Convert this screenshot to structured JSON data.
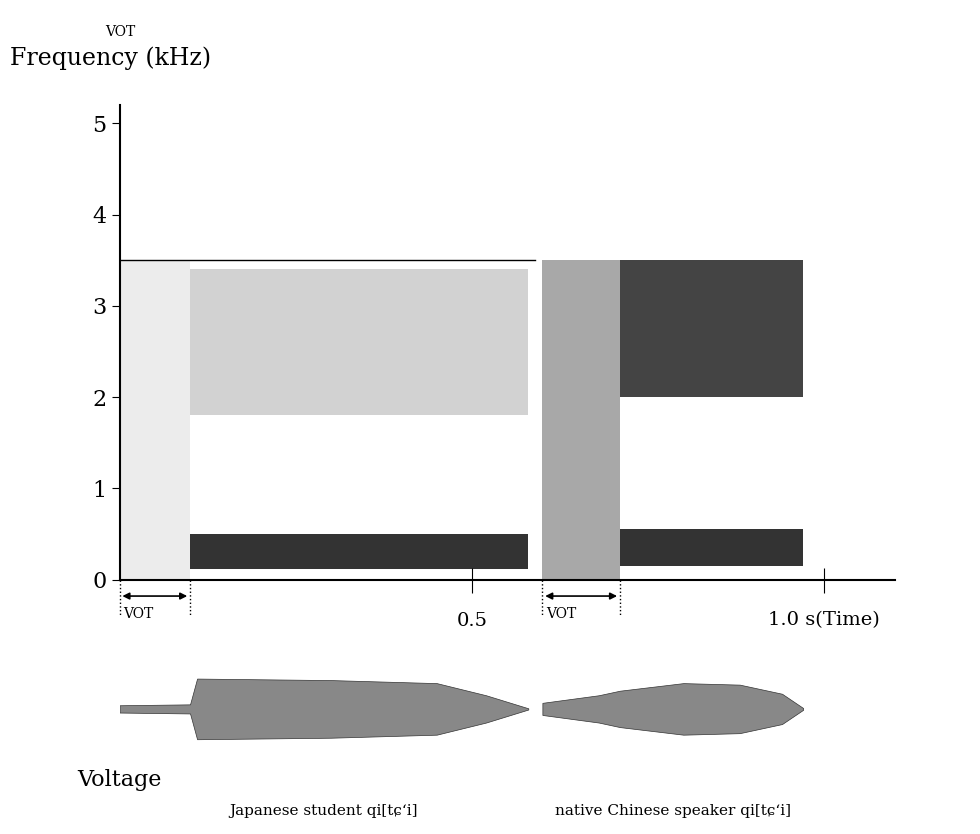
{
  "chart_data": {
    "type": "spectrogram",
    "header": "VOT",
    "y_label": "Frequency (kHz)",
    "ylim": [
      0,
      5.2
    ],
    "yticks": [
      0,
      1,
      2,
      3,
      4,
      5
    ],
    "xlim": [
      0,
      1.1
    ],
    "xticks": [
      {
        "value": 0.5,
        "label": "0.5"
      },
      {
        "value": 1.0,
        "label": "1.0 s(Time)"
      }
    ],
    "wave_label": "Voltage",
    "top_line": {
      "start": 0,
      "end": 0.59,
      "frequency": 3.5
    },
    "series": [
      {
        "name": "Japanese student qi[tɕʻi]",
        "vot": {
          "start": 0,
          "end": 0.1,
          "label": "VOT"
        },
        "bands": [
          {
            "start": 0,
            "end": 0.1,
            "low": 0,
            "high": 3.5,
            "color": "#ececec"
          },
          {
            "start": 0.1,
            "end": 0.58,
            "low": 1.8,
            "high": 3.4,
            "color": "#d2d2d2"
          },
          {
            "start": 0.1,
            "end": 0.58,
            "low": 0.12,
            "high": 0.5,
            "color": "#333333"
          }
        ],
        "waveform": {
          "t": [
            0,
            0.1,
            0.11,
            0.3,
            0.45,
            0.52,
            0.58
          ],
          "amplitude": [
            0.12,
            0.15,
            1.0,
            0.95,
            0.85,
            0.45,
            0.02
          ]
        }
      },
      {
        "name": "native Chinese speaker qi[tɕʻi]",
        "vot": {
          "start": 0.6,
          "end": 0.71,
          "label": "VOT"
        },
        "bands": [
          {
            "start": 0.6,
            "end": 0.71,
            "low": 0,
            "high": 3.5,
            "color": "#a8a8a8"
          },
          {
            "start": 0.71,
            "end": 0.97,
            "low": 2.0,
            "high": 3.5,
            "color": "#444444"
          },
          {
            "start": 0.71,
            "end": 0.97,
            "low": 0.15,
            "high": 0.55,
            "color": "#333333"
          }
        ],
        "waveform": {
          "t": [
            0.6,
            0.68,
            0.71,
            0.8,
            0.88,
            0.94,
            0.97
          ],
          "amplitude": [
            0.2,
            0.45,
            0.6,
            0.85,
            0.8,
            0.5,
            0.03
          ]
        }
      }
    ]
  }
}
